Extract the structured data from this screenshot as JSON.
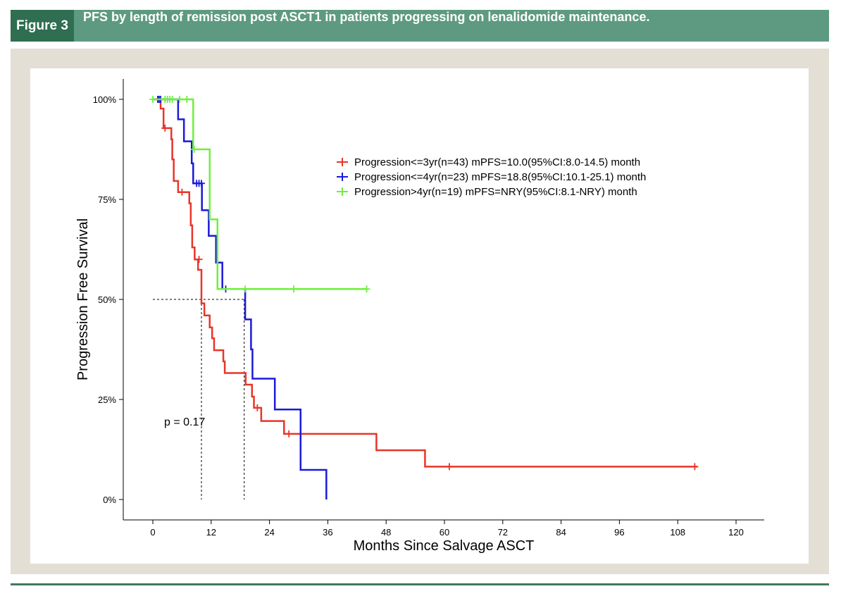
{
  "header": {
    "figure_label": "Figure 3",
    "title": "PFS by length of remission post ASCT1 in patients progressing on lenalidomide maintenance.",
    "colors": {
      "label_bg": "#2f6e50",
      "title_bg": "#5e9a82"
    }
  },
  "chart_data": {
    "type": "line",
    "subtype": "kaplan-meier step",
    "xlabel": "Months Since Salvage ASCT",
    "ylabel": "Progression Free Survival",
    "xlim": [
      0,
      120
    ],
    "ylim": [
      0,
      100
    ],
    "xticks": [
      "0",
      "12",
      "24",
      "36",
      "48",
      "60",
      "72",
      "84",
      "96",
      "108",
      "120"
    ],
    "yticks": [
      "0%",
      "25%",
      "50%",
      "75%",
      "100%"
    ],
    "legend_position": "top-right",
    "annotation": "p = 0.17",
    "median_lines": [
      10.0,
      18.8
    ],
    "series": [
      {
        "name": "Progression<=3yr(n=43) mPFS=10.0(95%CI:8.0-14.5) month",
        "color": "#e8352a",
        "steps": [
          [
            0,
            100
          ],
          [
            1.6,
            97.7
          ],
          [
            2.2,
            92.8
          ],
          [
            3.8,
            90
          ],
          [
            4.0,
            85
          ],
          [
            4.3,
            79.6
          ],
          [
            5.2,
            76.8
          ],
          [
            7.5,
            74
          ],
          [
            7.8,
            68.5
          ],
          [
            8.1,
            63
          ],
          [
            8.6,
            60
          ],
          [
            9.3,
            57.4
          ],
          [
            10.0,
            49
          ],
          [
            10.6,
            46
          ],
          [
            11.7,
            43
          ],
          [
            12.2,
            40.3
          ],
          [
            12.6,
            37.3
          ],
          [
            14.5,
            34.5
          ],
          [
            14.8,
            31.6
          ],
          [
            19.1,
            28.7
          ],
          [
            20.4,
            25.7
          ],
          [
            20.8,
            22.9
          ],
          [
            22.3,
            19.6
          ],
          [
            27,
            16.4
          ],
          [
            46,
            12.3
          ],
          [
            56,
            8.2
          ],
          [
            112,
            8.2
          ]
        ],
        "censored": [
          [
            1,
            100
          ],
          [
            2.5,
            92.8
          ],
          [
            6,
            76.8
          ],
          [
            9.5,
            60
          ],
          [
            21.5,
            22.9
          ],
          [
            28,
            16.4
          ],
          [
            61,
            8.2
          ],
          [
            111.5,
            8.2
          ]
        ]
      },
      {
        "name": "Progression<=4yr(n=23) mPFS=18.8(95%CI:10.1-25.1) month",
        "color": "#1a1adb",
        "steps": [
          [
            0,
            100
          ],
          [
            5.2,
            95
          ],
          [
            6.4,
            89.5
          ],
          [
            8.0,
            84
          ],
          [
            8.3,
            79
          ],
          [
            10.1,
            72.3
          ],
          [
            11.5,
            65.9
          ],
          [
            13.0,
            59.2
          ],
          [
            14.3,
            52.6
          ],
          [
            19.0,
            45
          ],
          [
            20.2,
            37.5
          ],
          [
            20.5,
            30.2
          ],
          [
            25.1,
            22.5
          ],
          [
            30.4,
            7.4
          ],
          [
            35.7,
            0
          ]
        ],
        "censored": [
          [
            1,
            100
          ],
          [
            1.3,
            100
          ],
          [
            1.6,
            100
          ],
          [
            9,
            79
          ],
          [
            9.5,
            79
          ],
          [
            10,
            79
          ],
          [
            15,
            52.6
          ]
        ]
      },
      {
        "name": "Progression>4yr(n=19) mPFS=NRY(95%CI:8.1-NRY) month",
        "color": "#6ef03c",
        "steps": [
          [
            0,
            100
          ],
          [
            8.3,
            87.5
          ],
          [
            11.7,
            70
          ],
          [
            13.3,
            52.6
          ],
          [
            44,
            52.6
          ]
        ],
        "censored": [
          [
            0,
            100
          ],
          [
            2.5,
            100
          ],
          [
            3,
            100
          ],
          [
            3.5,
            100
          ],
          [
            4,
            100
          ],
          [
            5.5,
            100
          ],
          [
            7,
            100
          ],
          [
            8.5,
            87.5
          ],
          [
            19,
            52.6
          ],
          [
            29,
            52.6
          ],
          [
            44,
            52.6
          ]
        ]
      }
    ]
  }
}
